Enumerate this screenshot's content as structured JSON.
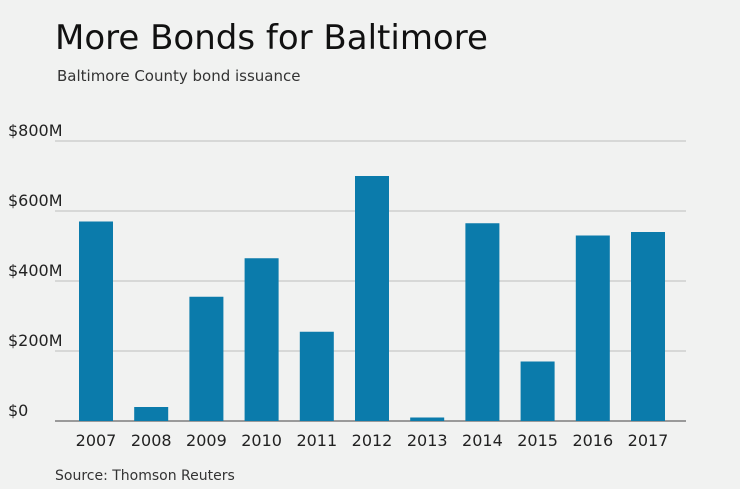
{
  "chart_data": {
    "type": "bar",
    "title": "More Bonds for Baltimore",
    "subtitle": "Baltimore County bond issuance",
    "source": "Source: Thomson Reuters",
    "categories": [
      "2007",
      "2008",
      "2009",
      "2010",
      "2011",
      "2012",
      "2013",
      "2014",
      "2015",
      "2016",
      "2017"
    ],
    "values": [
      570,
      40,
      355,
      465,
      255,
      700,
      10,
      565,
      170,
      530,
      540
    ],
    "unit": "M USD",
    "ylim": [
      0,
      800
    ],
    "yticks": [
      0,
      200,
      400,
      600,
      800
    ],
    "ytick_labels": [
      "$0",
      "$200M",
      "$400M",
      "$600M",
      "$800M"
    ],
    "xlabel": "",
    "ylabel": "",
    "grid": true,
    "bar_color": "#0b7bab",
    "grid_color": "#bdbdbd"
  }
}
